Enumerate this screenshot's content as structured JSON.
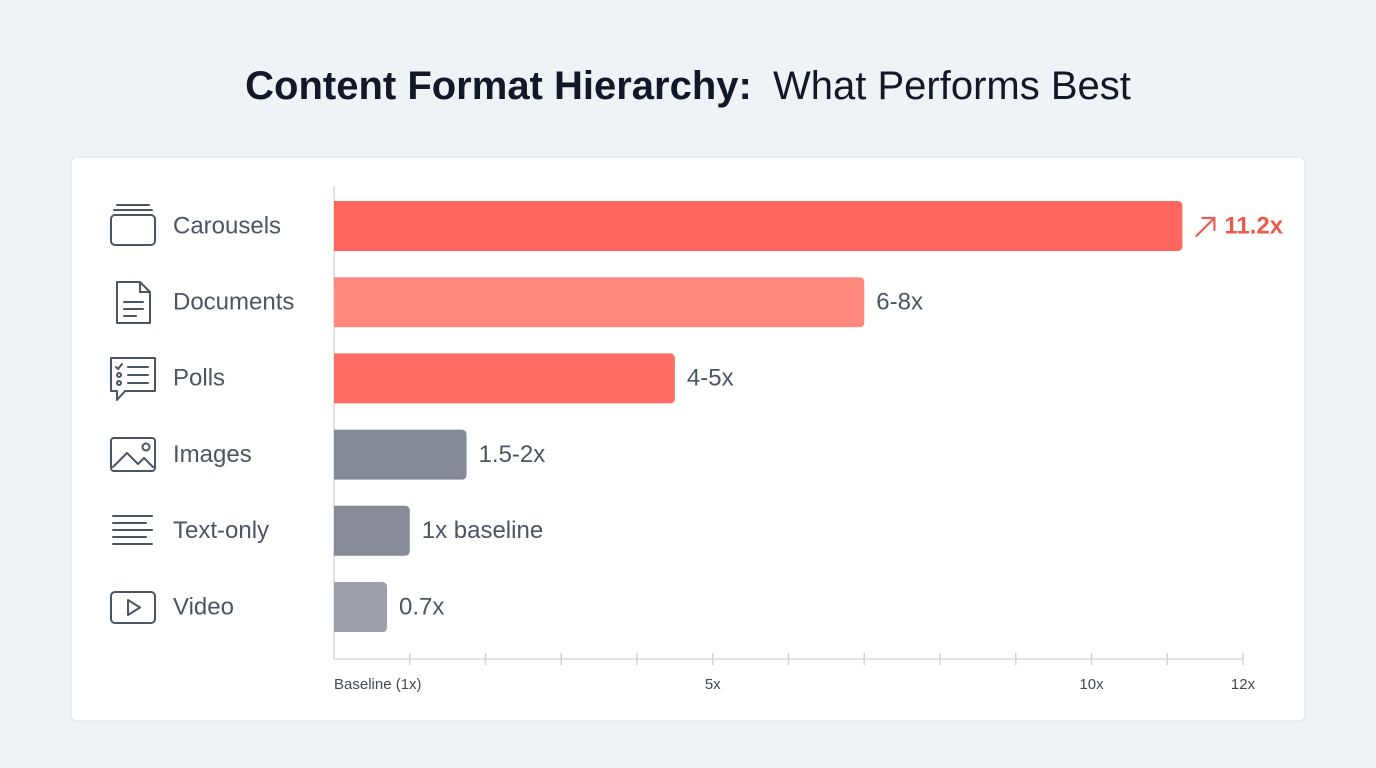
{
  "chart_data": {
    "type": "hbar",
    "title": [
      "Content Format Hierarchy:",
      "What Performs Best"
    ],
    "categories": [
      "Carousels",
      "Documents",
      "Polls",
      "Images",
      "Text-only",
      "Video"
    ],
    "values": [
      11.2,
      7,
      4.5,
      1.75,
      1,
      0.7
    ],
    "value_labels": [
      "11.2x",
      "6-8x",
      "4-5x",
      "1.5-2x",
      "1x baseline",
      "0.7x"
    ],
    "colors": [
      "#ff675e",
      "#ff887e",
      "#ff6d64",
      "#858b96",
      "#878c97",
      "#9ba0a8"
    ],
    "highlight": 0,
    "xlim": [
      0,
      12
    ],
    "xticks": [
      {
        "value": 1,
        "label": "Baseline (1x)"
      },
      {
        "value": 5,
        "label": "5x"
      },
      {
        "value": 10,
        "label": "10x"
      },
      {
        "value": 12,
        "label": "12x"
      }
    ],
    "xminorticks": [
      2,
      3,
      4,
      6,
      7,
      8,
      9,
      11
    ]
  }
}
